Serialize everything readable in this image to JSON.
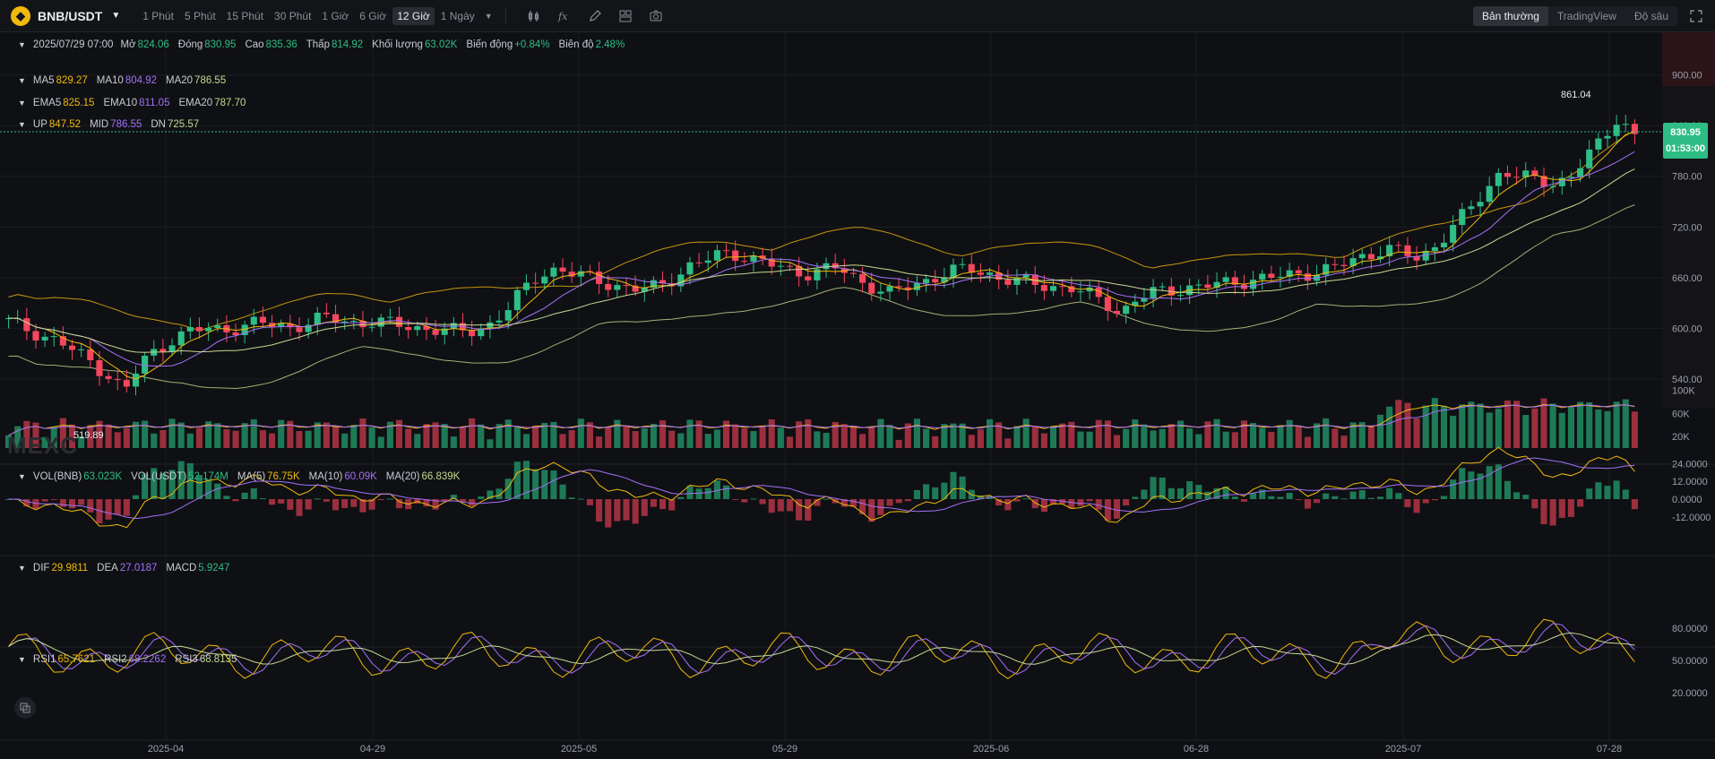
{
  "header": {
    "pair": "BNB/USDT",
    "intervals": [
      "1 Phút",
      "5 Phút",
      "15 Phút",
      "30 Phút",
      "1 Giờ",
      "6 Giờ",
      "12 Giờ",
      "1 Ngày"
    ],
    "active_interval": "12 Giờ",
    "modes": [
      "Bản thường",
      "TradingView",
      "Độ sâu"
    ],
    "active_mode": "Bản thường",
    "tools": [
      "candle-style-icon",
      "indicator-icon",
      "draw-icon",
      "layout-icon",
      "camera-icon"
    ]
  },
  "ohlc": {
    "date": "2025/07/29 07:00",
    "open_label": "Mở",
    "open": "824.06",
    "close_label": "Đóng",
    "close": "830.95",
    "high_label": "Cao",
    "high": "835.36",
    "low_label": "Thấp",
    "low": "814.92",
    "volume_label": "Khối lượng",
    "volume": "63.02K",
    "change_label": "Biến động",
    "change": "+0.84%",
    "amplitude_label": "Biên độ",
    "amplitude": "2.48%"
  },
  "ma": {
    "ma5_label": "MA5",
    "ma5": "829.27",
    "ma10_label": "MA10",
    "ma10": "804.92",
    "ma20_label": "MA20",
    "ma20": "786.55"
  },
  "ema": {
    "ema5_label": "EMA5",
    "ema5": "825.15",
    "ema10_label": "EMA10",
    "ema10": "811.05",
    "ema20_label": "EMA20",
    "ema20": "787.70"
  },
  "boll": {
    "up_label": "UP",
    "up": "847.52",
    "mid_label": "MID",
    "mid": "786.55",
    "dn_label": "DN",
    "dn": "725.57"
  },
  "vol": {
    "vol_bnb_label": "VOL(BNB)",
    "vol_bnb": "63.023K",
    "vol_usdt_label": "VOL(USDT)",
    "vol_usdt": "52.174M",
    "ma5_label": "MA(5)",
    "ma5": "76.75K",
    "ma10_label": "MA(10)",
    "ma10": "60.09K",
    "ma20_label": "MA(20)",
    "ma20": "66.839K"
  },
  "macd": {
    "dif_label": "DIF",
    "dif": "29.9811",
    "dea_label": "DEA",
    "dea": "27.0187",
    "macd_label": "MACD",
    "macd": "5.9247"
  },
  "rsi": {
    "rsi1_label": "RSI1",
    "rsi1": "65.7621",
    "rsi2_label": "RSI2",
    "rsi2": "68.2262",
    "rsi3_label": "RSI3",
    "rsi3": "68.8135"
  },
  "price_tag": {
    "price": "830.95",
    "countdown": "01:53:00"
  },
  "high_marker": "861.04",
  "low_marker": "519.89",
  "watermark": "MEXC",
  "colors": {
    "up": "#2ebd85",
    "down": "#f6465d",
    "ma5": "#f0b90b",
    "ma10": "#a370f7",
    "ma20": "#c7d88f"
  },
  "chart_data": {
    "type": "candlestick",
    "price_axis": [
      "900.00",
      "840.00",
      "780.00",
      "720.00",
      "660.00",
      "600.00",
      "540.00"
    ],
    "price_ylim": [
      505,
      925
    ],
    "volume_axis": [
      "100K",
      "60K",
      "20K"
    ],
    "macd_axis": [
      "24.0000",
      "12.0000",
      "0.0000",
      "-12.0000"
    ],
    "rsi_axis": [
      "80.0000",
      "50.0000",
      "20.0000"
    ],
    "x_ticks": [
      "2025-04",
      "04-29",
      "2025-05",
      "05-29",
      "2025-06",
      "06-28",
      "2025-07",
      "07-28"
    ],
    "close_path": [
      608,
      600,
      592,
      585,
      572,
      560,
      545,
      525,
      560,
      575,
      590,
      596,
      600,
      598,
      603,
      606,
      604,
      601,
      607,
      612,
      610,
      606,
      608,
      605,
      603,
      600,
      598,
      596,
      598,
      605,
      620,
      645,
      665,
      670,
      664,
      660,
      655,
      648,
      645,
      650,
      660,
      672,
      680,
      690,
      688,
      680,
      675,
      670,
      665,
      668,
      672,
      660,
      650,
      640,
      648,
      655,
      662,
      668,
      670,
      665,
      658,
      655,
      652,
      650,
      648,
      640,
      632,
      618,
      635,
      642,
      645,
      648,
      650,
      652,
      655,
      658,
      660,
      662,
      665,
      668,
      672,
      680,
      688,
      695,
      690,
      680,
      700,
      720,
      740,
      760,
      790,
      780,
      775,
      770,
      780,
      800,
      820,
      850,
      830
    ]
  }
}
